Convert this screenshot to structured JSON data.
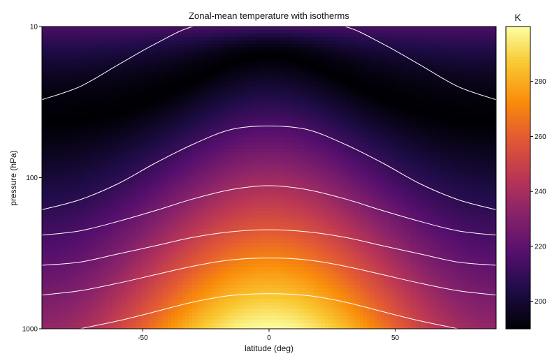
{
  "chart_data": {
    "type": "heatmap",
    "title": "Zonal-mean temperature with isotherms",
    "xlabel": "latitude (deg)",
    "ylabel": "pressure (hPa)",
    "xlim": [
      -90,
      90
    ],
    "ylim": [
      1000,
      10
    ],
    "y_scale": "log",
    "x_ticks": [
      -50,
      0,
      50
    ],
    "y_ticks": [
      10,
      100,
      1000
    ],
    "colorbar": {
      "label": "K",
      "range": [
        190,
        300
      ],
      "ticks": [
        200,
        220,
        240,
        260,
        280
      ],
      "colormap": "inferno"
    },
    "isotherm_color": "#ffffff",
    "isotherms": [
      {
        "note_level": 1,
        "points": [
          [
            -90,
            30.5
          ],
          [
            -75,
            25
          ],
          [
            -60,
            18
          ],
          [
            -45,
            13
          ],
          [
            -30,
            10
          ],
          [
            -15,
            10
          ],
          [
            0,
            10
          ],
          [
            15,
            10
          ],
          [
            30,
            10
          ],
          [
            45,
            13
          ],
          [
            60,
            18
          ],
          [
            75,
            25
          ],
          [
            90,
            30.5
          ]
        ]
      },
      {
        "note_level": 2,
        "points": [
          [
            -90,
            163
          ],
          [
            -75,
            140
          ],
          [
            -60,
            110
          ],
          [
            -45,
            80
          ],
          [
            -30,
            60
          ],
          [
            -15,
            48
          ],
          [
            0,
            45.5
          ],
          [
            15,
            48
          ],
          [
            30,
            60
          ],
          [
            45,
            80
          ],
          [
            60,
            110
          ],
          [
            75,
            140
          ],
          [
            90,
            163
          ]
        ]
      },
      {
        "note_level": 3,
        "points": [
          [
            -90,
            240
          ],
          [
            -75,
            225
          ],
          [
            -60,
            195
          ],
          [
            -45,
            165
          ],
          [
            -30,
            138
          ],
          [
            -15,
            120
          ],
          [
            0,
            113
          ],
          [
            15,
            120
          ],
          [
            30,
            138
          ],
          [
            45,
            165
          ],
          [
            60,
            195
          ],
          [
            75,
            225
          ],
          [
            90,
            240
          ]
        ]
      },
      {
        "note_level": 4,
        "points": [
          [
            -90,
            380
          ],
          [
            -75,
            362
          ],
          [
            -60,
            320
          ],
          [
            -45,
            282
          ],
          [
            -30,
            248
          ],
          [
            -15,
            228
          ],
          [
            0,
            221
          ],
          [
            15,
            228
          ],
          [
            30,
            248
          ],
          [
            45,
            282
          ],
          [
            60,
            320
          ],
          [
            75,
            362
          ],
          [
            90,
            380
          ]
        ]
      },
      {
        "note_level": 5,
        "points": [
          [
            -90,
            598
          ],
          [
            -75,
            560
          ],
          [
            -60,
            500
          ],
          [
            -45,
            438
          ],
          [
            -30,
            385
          ],
          [
            -15,
            350
          ],
          [
            0,
            340
          ],
          [
            15,
            350
          ],
          [
            30,
            385
          ],
          [
            45,
            438
          ],
          [
            60,
            500
          ],
          [
            75,
            560
          ],
          [
            90,
            598
          ]
        ]
      },
      {
        "note_level": 6,
        "points": [
          [
            -75,
            1000
          ],
          [
            -60,
            888
          ],
          [
            -45,
            770
          ],
          [
            -30,
            665
          ],
          [
            -15,
            602
          ],
          [
            0,
            586
          ],
          [
            15,
            602
          ],
          [
            30,
            665
          ],
          [
            45,
            770
          ],
          [
            60,
            888
          ],
          [
            75,
            1000
          ]
        ]
      }
    ],
    "field": {
      "description_free": true,
      "equator_surface_K": 300,
      "pole_surface_K": 235,
      "tropopause_min_K": 190,
      "stratosphere_top_K": 215,
      "tropopause_equator_hPa": 16,
      "tropopause_pole_hPa": 45
    }
  }
}
